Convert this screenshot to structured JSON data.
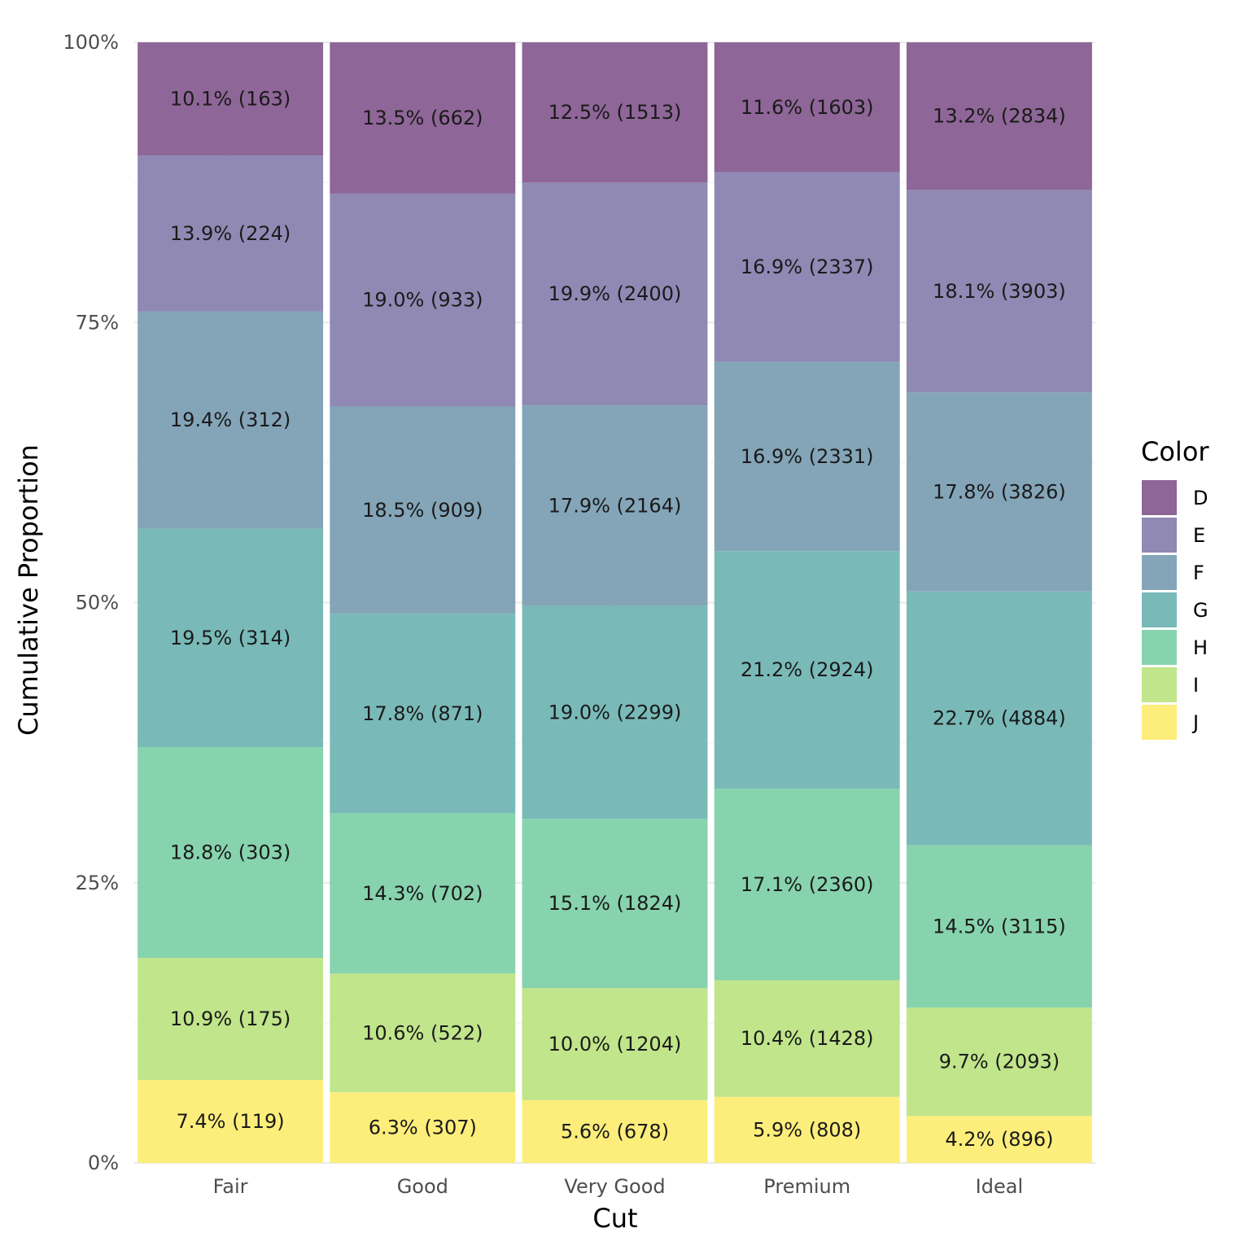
{
  "chart_data": {
    "type": "bar",
    "stacked": true,
    "normalized": true,
    "xlabel": "Cut",
    "ylabel": "Cumulative Proportion",
    "ylim": [
      0,
      1
    ],
    "y_ticks": [
      0,
      0.25,
      0.5,
      0.75,
      1
    ],
    "y_tick_labels": [
      "0%",
      "25%",
      "50%",
      "75%",
      "100%"
    ],
    "grid": true,
    "legend_title": "Color",
    "legend_position": "right",
    "categories": [
      "Fair",
      "Good",
      "Very Good",
      "Premium",
      "Ideal"
    ],
    "series": [
      {
        "name": "D",
        "color": "#8e6697",
        "values": [
          10.1,
          13.5,
          12.5,
          11.6,
          13.2
        ],
        "labels": [
          "10.1% (163)",
          "13.5% (662)",
          "12.5% (1513)",
          "11.6% (1603)",
          "13.2% (2834)"
        ]
      },
      {
        "name": "E",
        "color": "#8f89b4",
        "values": [
          13.9,
          19.0,
          19.9,
          16.9,
          18.1
        ],
        "labels": [
          "13.9% (224)",
          "19.0% (933)",
          "19.9% (2400)",
          "16.9% (2337)",
          "18.1% (3903)"
        ]
      },
      {
        "name": "F",
        "color": "#84a5b8",
        "values": [
          19.4,
          18.5,
          17.9,
          16.9,
          17.8
        ],
        "labels": [
          "19.4% (312)",
          "18.5% (909)",
          "17.9% (2164)",
          "16.9% (2331)",
          "17.8% (3826)"
        ]
      },
      {
        "name": "G",
        "color": "#79bab8",
        "values": [
          19.5,
          17.8,
          19.0,
          21.2,
          22.7
        ],
        "labels": [
          "19.5% (314)",
          "17.8% (871)",
          "19.0% (2299)",
          "21.2% (2924)",
          "22.7% (4884)"
        ]
      },
      {
        "name": "H",
        "color": "#87d3ae",
        "values": [
          18.8,
          14.3,
          15.1,
          17.1,
          14.5
        ],
        "labels": [
          "18.8% (303)",
          "14.3% (702)",
          "15.1% (1824)",
          "17.1% (2360)",
          "14.5% (3115)"
        ]
      },
      {
        "name": "I",
        "color": "#c1e58b",
        "values": [
          10.9,
          10.6,
          10.0,
          10.4,
          9.7
        ],
        "labels": [
          "10.9% (175)",
          "10.6% (522)",
          "10.0% (1204)",
          "10.4% (1428)",
          "9.7% (2093)"
        ]
      },
      {
        "name": "J",
        "color": "#fdee7b",
        "values": [
          7.4,
          6.3,
          5.6,
          5.9,
          4.2
        ],
        "labels": [
          "7.4% (119)",
          "6.3% (307)",
          "5.6% (678)",
          "5.9% (808)",
          "4.2% (896)"
        ]
      }
    ]
  }
}
